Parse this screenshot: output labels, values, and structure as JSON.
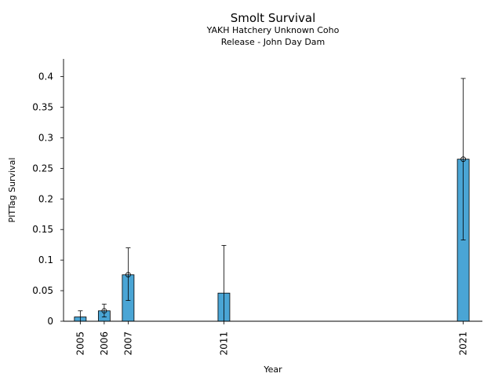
{
  "chart_data": {
    "type": "bar",
    "title": "Smolt Survival",
    "subtitle_lines": [
      "YAKH Hatchery Unknown Coho",
      "Release - John Day Dam"
    ],
    "xlabel": "Year",
    "ylabel": "PITTag Survival",
    "ylim": [
      0,
      0.42
    ],
    "xlim": [
      2004.3,
      2021.8
    ],
    "yticks": [
      0,
      0.05,
      0.1,
      0.15,
      0.2,
      0.25,
      0.3,
      0.35,
      0.4
    ],
    "ytick_labels": [
      "0",
      "0.05",
      "0.1",
      "0.15",
      "0.2",
      "0.25",
      "0.3",
      "0.35",
      "0.4"
    ],
    "categories": [
      "2005",
      "2006",
      "2007",
      "2011",
      "2021"
    ],
    "x": [
      2005,
      2006,
      2007,
      2011,
      2021
    ],
    "values": [
      0.007,
      0.017,
      0.076,
      0.046,
      0.265
    ],
    "error_low": [
      0.0,
      0.007,
      0.034,
      0.0,
      0.133
    ],
    "error_high": [
      0.017,
      0.028,
      0.12,
      0.124,
      0.397
    ],
    "markers": [
      false,
      true,
      true,
      false,
      true
    ],
    "grid": false,
    "colors": {
      "bar": "#4aa5d5",
      "edge": "#000000"
    }
  }
}
